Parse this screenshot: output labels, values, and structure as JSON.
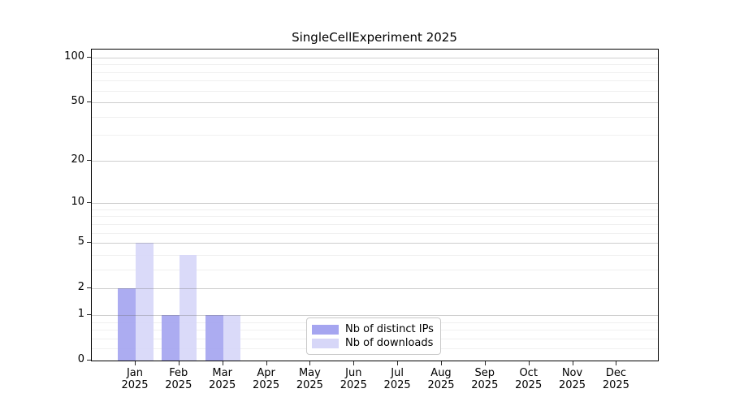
{
  "chart_data": {
    "type": "bar",
    "title": "SingleCellExperiment 2025",
    "categories": [
      "Jan",
      "Feb",
      "Mar",
      "Apr",
      "May",
      "Jun",
      "Jul",
      "Aug",
      "Sep",
      "Oct",
      "Nov",
      "Dec"
    ],
    "category_year": "2025",
    "series": [
      {
        "name": "Nb of distinct IPs",
        "color": "#a5a5f0",
        "values": [
          2,
          1,
          1,
          0,
          0,
          0,
          0,
          0,
          0,
          0,
          0,
          0
        ]
      },
      {
        "name": "Nb of downloads",
        "color": "#d7d7f8",
        "values": [
          5,
          4,
          1,
          0,
          0,
          0,
          0,
          0,
          0,
          0,
          0,
          0
        ]
      }
    ],
    "yscale": "log1p",
    "yticks": [
      0,
      1,
      2,
      5,
      10,
      20,
      50,
      100
    ],
    "yticks_minor": [
      0.2,
      0.4,
      0.6,
      0.8,
      3,
      4,
      6,
      7,
      8,
      9,
      30,
      40,
      60,
      70,
      80,
      90
    ],
    "ylim": [
      0,
      113
    ],
    "grid": "horizontal",
    "legend_position": "lower center"
  }
}
